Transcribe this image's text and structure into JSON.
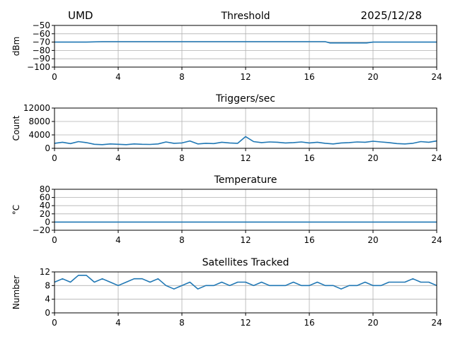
{
  "header": {
    "left": "UMD",
    "right": "2025/12/28"
  },
  "colors": {
    "series": "#1f77b4",
    "grid": "#b0b0b0",
    "axis": "#000000"
  },
  "chart_data": [
    {
      "type": "line",
      "title": "Threshold",
      "ylabel": "dBm",
      "xlim": [
        0,
        24
      ],
      "ylim": [
        -100,
        -50
      ],
      "xticks": [
        0,
        4,
        8,
        12,
        16,
        20,
        24
      ],
      "yticks": [
        -100,
        -90,
        -80,
        -70,
        -60,
        -50
      ],
      "grid": true,
      "series": [
        {
          "x": [
            0,
            1,
            2,
            3,
            4,
            6,
            8,
            10,
            12,
            14,
            16,
            17,
            17.3,
            18,
            19,
            19.6,
            20,
            21,
            22,
            24
          ],
          "y": [
            -70,
            -70,
            -70,
            -69.5,
            -69.5,
            -69.5,
            -69.5,
            -69.5,
            -69.5,
            -69.5,
            -69.5,
            -69.5,
            -71,
            -71,
            -71,
            -71,
            -70,
            -70,
            -70,
            -70
          ]
        }
      ]
    },
    {
      "type": "line",
      "title": "Triggers/sec",
      "ylabel": "Count",
      "xlim": [
        0,
        24
      ],
      "ylim": [
        0,
        12000
      ],
      "xticks": [
        0,
        4,
        8,
        12,
        16,
        20,
        24
      ],
      "yticks": [
        0,
        4000,
        8000,
        12000
      ],
      "grid": true,
      "series": [
        {
          "x": [
            0,
            0.5,
            1,
            1.5,
            2,
            2.5,
            3,
            3.5,
            4,
            4.5,
            5,
            5.5,
            6,
            6.5,
            7,
            7.5,
            8,
            8.5,
            9,
            9.5,
            10,
            10.5,
            11,
            11.5,
            12,
            12.5,
            13,
            13.5,
            14,
            14.5,
            15,
            15.5,
            16,
            16.5,
            17,
            17.5,
            18,
            18.5,
            19,
            19.5,
            20,
            20.5,
            21,
            21.5,
            22,
            22.5,
            23,
            23.5,
            24
          ],
          "y": [
            1500,
            1800,
            1400,
            2000,
            1700,
            1200,
            1100,
            1300,
            1200,
            1100,
            1300,
            1200,
            1150,
            1300,
            1900,
            1500,
            1600,
            2200,
            1300,
            1500,
            1400,
            1800,
            1600,
            1500,
            3500,
            2000,
            1700,
            1900,
            1800,
            1600,
            1700,
            1900,
            1600,
            1800,
            1500,
            1300,
            1600,
            1700,
            1900,
            1800,
            2100,
            1900,
            1700,
            1400,
            1300,
            1500,
            2000,
            1800,
            2200
          ]
        }
      ]
    },
    {
      "type": "line",
      "title": "Temperature",
      "ylabel": "°C",
      "xlim": [
        0,
        24
      ],
      "ylim": [
        -20,
        80
      ],
      "xticks": [
        0,
        4,
        8,
        12,
        16,
        20,
        24
      ],
      "yticks": [
        -20,
        0,
        20,
        40,
        60,
        80
      ],
      "grid": true,
      "series": [
        {
          "x": [
            0,
            24
          ],
          "y": [
            0,
            0
          ]
        }
      ]
    },
    {
      "type": "line",
      "title": "Satellites Tracked",
      "ylabel": "Number",
      "xlim": [
        0,
        24
      ],
      "ylim": [
        0,
        12
      ],
      "xticks": [
        0,
        4,
        8,
        12,
        16,
        20,
        24
      ],
      "yticks": [
        0,
        4,
        8,
        12
      ],
      "grid": true,
      "series": [
        {
          "x": [
            0,
            0.5,
            1,
            1.5,
            2,
            2.5,
            3,
            3.5,
            4,
            4.5,
            5,
            5.5,
            6,
            6.5,
            7,
            7.5,
            8,
            8.5,
            9,
            9.5,
            10,
            10.5,
            11,
            11.5,
            12,
            12.5,
            13,
            13.5,
            14,
            14.5,
            15,
            15.5,
            16,
            16.5,
            17,
            17.5,
            18,
            18.5,
            19,
            19.5,
            20,
            20.5,
            21,
            21.5,
            22,
            22.5,
            23,
            23.5,
            24
          ],
          "y": [
            9,
            10,
            9,
            11,
            11,
            9,
            10,
            9,
            8,
            9,
            10,
            10,
            9,
            10,
            8,
            7,
            8,
            9,
            7,
            8,
            8,
            9,
            8,
            9,
            9,
            8,
            9,
            8,
            8,
            8,
            9,
            8,
            8,
            9,
            8,
            8,
            7,
            8,
            8,
            9,
            8,
            8,
            9,
            9,
            9,
            10,
            9,
            9,
            8
          ]
        }
      ]
    }
  ]
}
